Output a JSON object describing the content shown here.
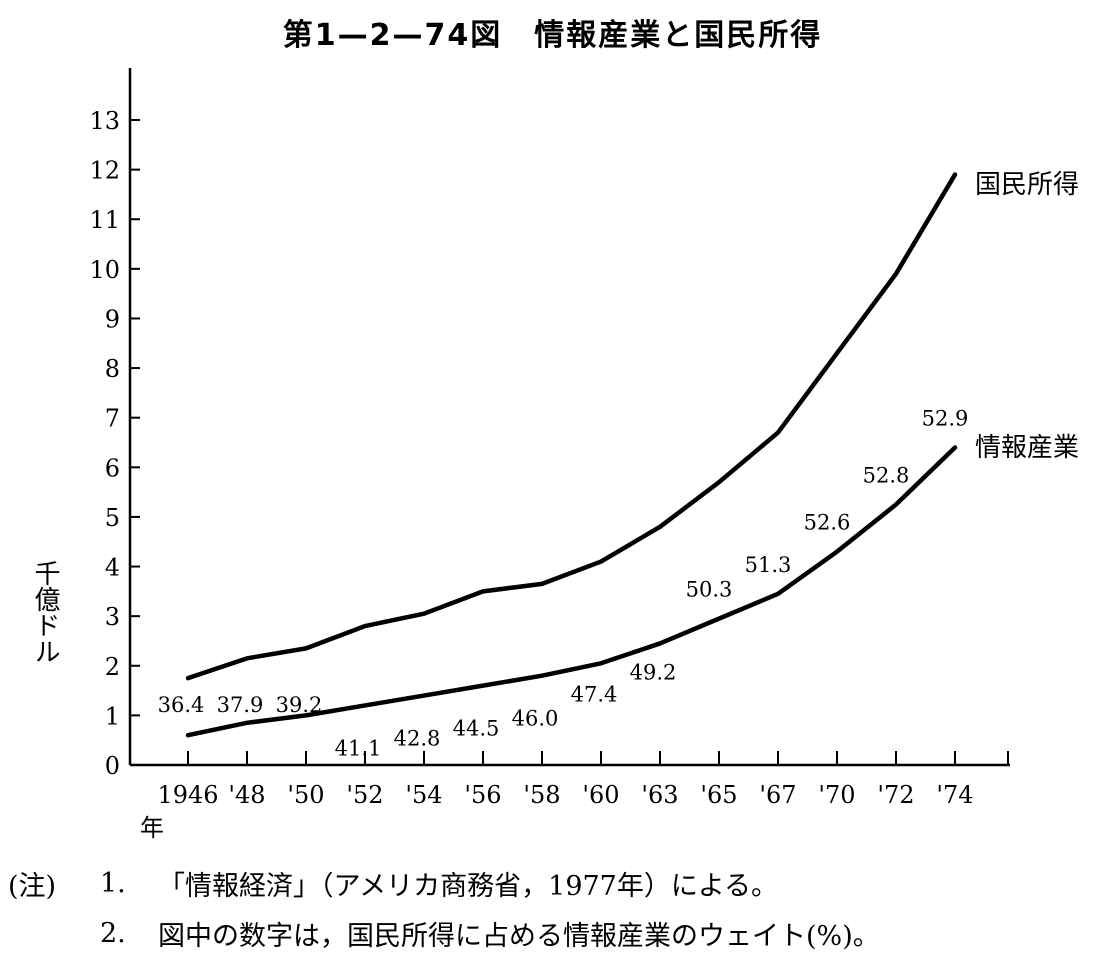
{
  "title": "第1—2—74図　情報産業と国民所得",
  "chart_data": {
    "type": "line",
    "title": "第1—2—74図　情報産業と国民所得",
    "ylabel": "千億ドル",
    "xlabel": "年",
    "ylim": [
      0,
      13
    ],
    "yticks": [
      "0",
      "1",
      "2",
      "3",
      "4",
      "5",
      "6",
      "7",
      "8",
      "9",
      "10",
      "11",
      "12",
      "13"
    ],
    "x": [
      "1946",
      "'48",
      "'50",
      "'52",
      "'54",
      "'56",
      "'58",
      "'60",
      "'63",
      "'65",
      "'67",
      "'70",
      "'72",
      "'74"
    ],
    "series": [
      {
        "name": "国民所得",
        "values": [
          1.75,
          2.15,
          2.35,
          2.8,
          3.05,
          3.5,
          3.65,
          4.1,
          4.8,
          5.7,
          6.7,
          8.3,
          9.9,
          11.9
        ]
      },
      {
        "name": "情報産業",
        "values": [
          0.6,
          0.85,
          1.0,
          1.2,
          1.4,
          1.6,
          1.8,
          2.05,
          2.45,
          2.95,
          3.45,
          4.3,
          5.25,
          6.4
        ]
      }
    ],
    "data_labels": [
      "36.4",
      "37.9",
      "39.2",
      "41.1",
      "42.8",
      "44.5",
      "46.0",
      "47.4",
      "49.2",
      "50.3",
      "51.3",
      "52.6",
      "52.8",
      "52.9"
    ],
    "grid": false,
    "legend": "inline labels at line ends"
  },
  "notes": {
    "prefix": "(注)",
    "items": [
      {
        "num": "1.",
        "text": "「情報経済」（アメリカ商務省，1977年）による。"
      },
      {
        "num": "2.",
        "text": "図中の数字は，国民所得に占める情報産業のウェイト(%)。"
      }
    ]
  }
}
